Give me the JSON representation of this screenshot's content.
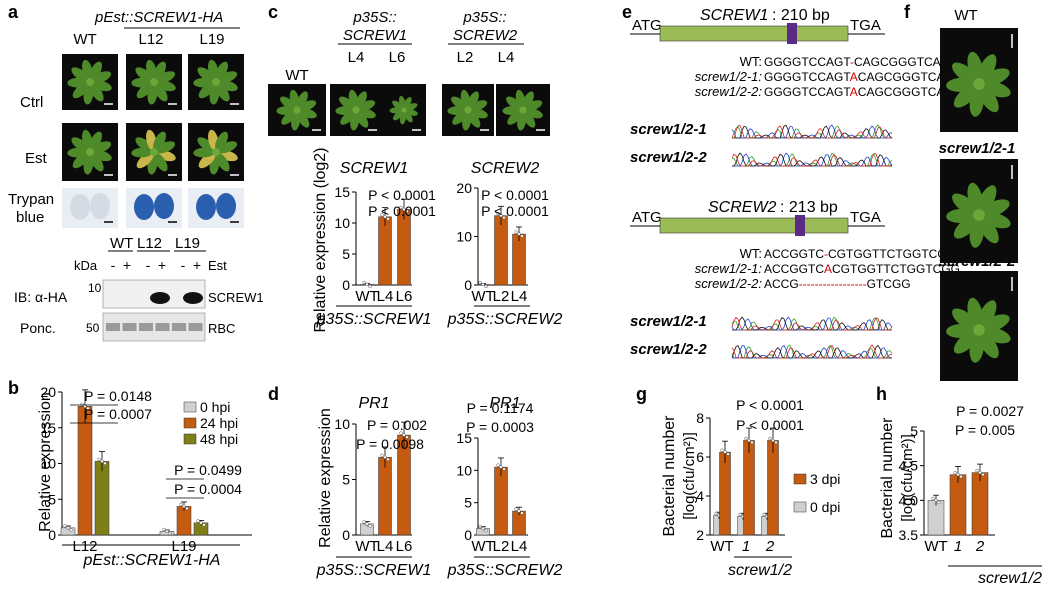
{
  "panels": {
    "a": {
      "letter": "a",
      "construct": "pEst::SCREW1-HA",
      "cols": [
        "WT",
        "L12",
        "L19"
      ],
      "rows": [
        "Ctrl",
        "Est",
        "Trypan",
        "blue"
      ],
      "blot": {
        "lanes": [
          "WT",
          "L12",
          "L19"
        ],
        "kda": "kDa",
        "treatment": [
          "-",
          "+",
          "-",
          "+",
          "-",
          "+"
        ],
        "est": "Est",
        "ib": "IB: α-HA",
        "ponc": "Ponc.",
        "marker_top": "10",
        "marker_bottom": "50",
        "band_top": "SCREW1",
        "band_bottom": "RBC"
      }
    },
    "c": {
      "letter": "c",
      "wt": "WT",
      "constructs": [
        {
          "line1": "p35S::",
          "line2": "SCREW1",
          "lines": [
            "L4",
            "L6"
          ]
        },
        {
          "line1": "p35S::",
          "line2": "SCREW2",
          "lines": [
            "L2",
            "L4"
          ]
        }
      ]
    },
    "e": {
      "letter": "e",
      "genes": [
        {
          "atg": "ATG",
          "tga": "TGA",
          "name": "SCREW1",
          "size": ": 210 bp",
          "seqs": [
            {
              "label": "WT:",
              "pre": "GGGGTCCAGT",
              "mid": "-",
              "post": "CAGCGGGTCAGG"
            },
            {
              "label": "screw1/2-1:",
              "pre": "GGGGTCCAGT",
              "mid": "A",
              "post": "CAGCGGGTCAGG"
            },
            {
              "label": "screw1/2-2:",
              "pre": "GGGGTCCAGT",
              "mid": "A",
              "post": "CAGCGGGTCAGG"
            }
          ],
          "traces": [
            "screw1/2-1",
            "screw1/2-2"
          ]
        },
        {
          "atg": "ATG",
          "tga": "TGA",
          "name": "SCREW2",
          "size": ": 213 bp",
          "seqs": [
            {
              "label": "WT:",
              "pre": "ACCGGTC",
              "mid": "-",
              "post": "CGTGGTTCTGGTCGG"
            },
            {
              "label": "screw1/2-1:",
              "pre": "ACCGGTC",
              "mid": "A",
              "post": "CGTGGTTCTGGTCGG"
            },
            {
              "label": "screw1/2-2:",
              "pre": "ACCG",
              "mid": "-----------------",
              "post": "GTCGG"
            }
          ],
          "traces": [
            "screw1/2-1",
            "screw1/2-2"
          ]
        }
      ]
    },
    "f": {
      "letter": "f",
      "labels": [
        "WT",
        "screw1/2-1",
        "screw1/2-2"
      ]
    }
  },
  "colors": {
    "orange": "#C55A11",
    "olive": "#7F7F1A",
    "grey": "#D0D0D0",
    "plant_bg": "#0b0b0b",
    "leaf": "#4f8a2a",
    "blot_bg": "#f2f2f2",
    "trypan_blue": "#2a5fb0",
    "gene_bar": "#9bbb59",
    "purple": "#5b2a86",
    "red": "#d10000"
  },
  "chart_data": [
    {
      "id": "b",
      "type": "bar",
      "letter": "b",
      "categories": [
        "L12",
        "L19"
      ],
      "xlabel": "pEst::SCREW1-HA",
      "ylabel": "Relative expression",
      "ylim": [
        0,
        20
      ],
      "series": [
        {
          "name": "0 hpi",
          "values": [
            1,
            0.5
          ]
        },
        {
          "name": "24 hpi",
          "values": [
            18,
            4
          ]
        },
        {
          "name": "48 hpi",
          "values": [
            10.3,
            1.7
          ]
        }
      ],
      "yticks": [
        "0",
        "5",
        "10",
        "15",
        "20"
      ],
      "annotations": [
        "P = 0.0148",
        "P = 0.0007",
        "P = 0.0499",
        "P = 0.0004"
      ],
      "legend": "top-right"
    },
    {
      "id": "c1",
      "type": "bar",
      "title": "SCREW1",
      "categories": [
        "WT",
        "L4",
        "L6"
      ],
      "values": [
        0.1,
        11,
        12.2
      ],
      "ylim": [
        0,
        15
      ],
      "yticks": [
        "0",
        "5",
        "10",
        "15"
      ],
      "ylabel": "Relative expression (log2)",
      "xlabel": "p35S::SCREW1",
      "annotations": [
        "P < 0.0001",
        "P < 0.0001"
      ]
    },
    {
      "id": "c2",
      "type": "bar",
      "title": "SCREW2",
      "categories": [
        "WT",
        "L2",
        "L4"
      ],
      "values": [
        0.1,
        14.3,
        10.5
      ],
      "ylim": [
        0,
        20
      ],
      "yticks": [
        "0",
        "10",
        "20"
      ],
      "xlabel": "p35S::SCREW2",
      "annotations": [
        "P < 0.0001",
        "P < 0.0001"
      ]
    },
    {
      "id": "d1",
      "type": "bar",
      "letter": "d",
      "title": "PR1",
      "categories": [
        "WT",
        "L4",
        "L6"
      ],
      "values": [
        1,
        7,
        9
      ],
      "ylim": [
        0,
        10
      ],
      "yticks": [
        "0",
        "5",
        "10"
      ],
      "ylabel": "Relative expression",
      "xlabel": "p35S::SCREW1",
      "annotations": [
        "P = 0.002",
        "P = 0.0098"
      ]
    },
    {
      "id": "d2",
      "type": "bar",
      "title": "PR1",
      "categories": [
        "WT",
        "L2",
        "L4"
      ],
      "values": [
        1,
        10.5,
        3.7
      ],
      "ylim": [
        0,
        15
      ],
      "yticks": [
        "0",
        "5",
        "10",
        "15"
      ],
      "xlabel": "p35S::SCREW2",
      "annotations": [
        "P = 0.1174",
        "P = 0.0003"
      ]
    },
    {
      "id": "g",
      "type": "bar",
      "letter": "g",
      "categories": [
        "WT",
        "1",
        "2"
      ],
      "xlabel": "screw1/2",
      "ylabel": "Bacterial number",
      "ylabel2": "[log(cfu/cm²)]",
      "ylim": [
        2,
        8
      ],
      "yticks": [
        "2",
        "4",
        "6",
        "8"
      ],
      "series": [
        {
          "name": "0 dpi",
          "values": [
            3.0,
            2.95,
            2.95
          ]
        },
        {
          "name": "3 dpi",
          "values": [
            6.25,
            6.85,
            6.85
          ]
        }
      ],
      "annotations": [
        "P < 0.0001",
        "P < 0.0001"
      ]
    },
    {
      "id": "h",
      "type": "bar",
      "letter": "h",
      "categories": [
        "WT",
        "1",
        "2"
      ],
      "values": [
        4.0,
        4.37,
        4.4
      ],
      "ylim": [
        3.5,
        5
      ],
      "yticks": [
        "3.5",
        "4.0",
        "4.5",
        "5"
      ],
      "ylabel": "Bacterial number",
      "ylabel2": "[log(cfu/cm²)]",
      "xlabel": "screw1/2",
      "annotations": [
        "P = 0.0027",
        "P = 0.005"
      ]
    }
  ]
}
